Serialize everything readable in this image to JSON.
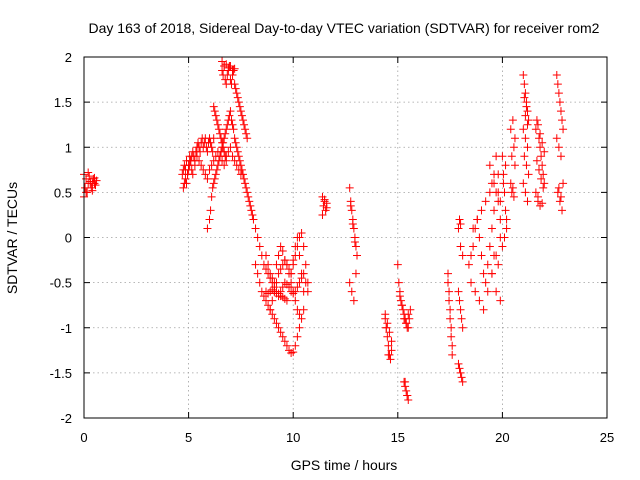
{
  "chart_data": {
    "type": "scatter",
    "title": "Day 163 of 2018, Sidereal Day-to-day VTEC variation (SDTVAR) for receiver rom2",
    "xlabel": "GPS time / hours",
    "ylabel": "SDTVAR / TECUs",
    "xlim": [
      0,
      25
    ],
    "ylim": [
      -2,
      2
    ],
    "xticks": [
      0,
      5,
      10,
      15,
      20,
      25
    ],
    "yticks": [
      -2,
      -1.5,
      -1,
      -0.5,
      0,
      0.5,
      1,
      1.5,
      2
    ],
    "xtick_labels": [
      "0",
      "5",
      "10",
      "15",
      "20",
      "25"
    ],
    "ytick_labels": [
      "-2",
      "-1.5",
      "-1",
      "-0.5",
      "0",
      "0.5",
      "1",
      "1.5",
      "2"
    ],
    "grid": true,
    "marker": "+",
    "color": "#ff0000",
    "series": [
      {
        "name": "SDTVAR",
        "x": [
          0.0,
          0.05,
          0.1,
          0.15,
          0.2,
          0.25,
          0.3,
          0.35,
          0.4,
          0.45,
          0.5,
          0.55,
          0.6,
          0.0,
          0.1,
          0.2,
          0.3,
          0.4,
          0.5,
          4.7,
          4.75,
          4.8,
          4.85,
          4.9,
          4.95,
          5.0,
          5.05,
          5.1,
          5.15,
          5.2,
          5.25,
          5.3,
          5.35,
          5.4,
          5.45,
          5.5,
          5.55,
          5.6,
          5.65,
          5.7,
          5.75,
          5.8,
          5.85,
          5.9,
          5.95,
          6.0,
          6.05,
          6.1,
          6.15,
          6.2,
          4.75,
          4.8,
          4.85,
          4.9,
          4.95,
          5.0,
          5.05,
          5.1,
          5.15,
          5.2,
          5.3,
          5.4,
          5.5,
          5.6,
          5.7,
          5.8,
          5.9,
          6.0,
          6.1,
          6.2,
          6.3,
          6.4,
          6.5,
          6.6,
          6.7,
          6.8,
          6.9,
          7.0,
          7.1,
          7.2,
          7.3,
          7.4,
          7.5,
          5.9,
          6.0,
          6.05,
          6.1,
          6.15,
          6.2,
          6.25,
          6.3,
          6.35,
          6.4,
          6.45,
          6.5,
          6.55,
          6.6,
          6.65,
          6.7,
          6.75,
          6.8,
          6.85,
          6.9,
          6.95,
          7.0,
          7.05,
          7.1,
          7.15,
          7.2,
          7.25,
          7.3,
          7.35,
          7.4,
          7.45,
          7.5,
          7.55,
          7.6,
          7.65,
          7.7,
          7.75,
          7.8,
          7.85,
          7.9,
          7.95,
          8.0,
          8.05,
          8.1,
          8.2,
          8.3,
          8.4,
          8.5,
          8.6,
          8.7,
          8.8,
          8.9,
          9.0,
          9.1,
          9.2,
          9.3,
          9.4,
          9.5,
          9.6,
          9.7,
          9.8,
          9.9,
          10.0,
          10.1,
          10.2,
          10.3,
          10.4,
          10.5,
          6.6,
          6.65,
          6.7,
          6.75,
          6.8,
          6.85,
          6.9,
          6.95,
          7.0,
          7.05,
          7.1,
          7.15,
          7.2,
          7.25,
          7.3,
          7.35,
          7.4,
          7.45,
          7.5,
          7.55,
          7.6,
          7.65,
          7.7,
          7.75,
          7.8,
          6.6,
          6.7,
          6.8,
          6.9,
          7.0,
          7.1,
          7.2,
          6.2,
          6.25,
          6.3,
          6.35,
          6.4,
          6.45,
          6.5,
          6.55,
          6.6,
          6.65,
          6.7,
          6.75,
          6.8,
          8.2,
          8.3,
          8.4,
          8.5,
          8.6,
          8.7,
          8.8,
          8.9,
          9.0,
          9.1,
          9.2,
          9.3,
          9.4,
          9.5,
          9.6,
          9.7,
          9.8,
          9.9,
          10.0,
          10.1,
          10.2,
          10.3,
          10.4,
          10.5,
          8.7,
          8.8,
          8.9,
          9.0,
          9.1,
          9.2,
          9.3,
          9.4,
          9.5,
          9.6,
          9.7,
          9.8,
          9.9,
          10.0,
          10.1,
          10.2,
          10.3,
          10.4,
          10.5,
          10.6,
          10.7,
          8.7,
          8.8,
          8.9,
          9.0,
          9.1,
          9.2,
          9.3,
          9.4,
          9.5,
          9.6,
          9.7,
          9.8,
          9.9,
          10.0,
          10.1,
          10.2,
          10.3,
          10.4,
          10.5,
          10.6,
          10.7,
          8.9,
          9.0,
          9.1,
          9.2,
          9.3,
          9.4,
          9.5,
          9.6,
          9.7,
          9.8,
          9.9,
          10.0,
          10.1,
          10.2,
          10.3,
          11.4,
          11.45,
          11.5,
          11.55,
          11.6,
          11.4,
          11.5,
          11.6,
          12.7,
          12.75,
          12.8,
          12.85,
          12.9,
          12.95,
          13.0,
          13.05,
          12.7,
          12.8,
          12.9,
          13.0,
          12.75,
          12.85,
          12.95,
          14.4,
          14.45,
          14.5,
          14.55,
          14.6,
          14.65,
          14.7,
          14.4,
          14.5,
          14.6,
          14.7,
          14.45,
          14.55,
          15.0,
          15.05,
          15.1,
          15.15,
          15.2,
          15.25,
          15.3,
          15.35,
          15.4,
          15.45,
          15.5,
          15.55,
          15.6,
          15.1,
          15.2,
          15.3,
          15.4,
          15.5,
          15.3,
          15.35,
          15.4,
          15.45,
          15.5,
          15.35,
          15.45,
          17.4,
          17.45,
          17.5,
          17.55,
          17.6,
          17.4,
          17.5,
          17.6,
          17.45,
          17.55,
          17.9,
          17.95,
          18.0,
          18.05,
          18.1,
          17.9,
          18.0,
          18.1,
          17.95,
          18.05,
          17.9,
          18.0,
          17.95,
          18.0,
          18.1,
          18.4,
          18.5,
          18.6,
          18.7,
          18.8,
          18.9,
          19.0,
          19.1,
          19.2,
          19.3,
          19.4,
          19.5,
          19.6,
          19.7,
          19.8,
          19.9,
          18.5,
          18.7,
          18.9,
          19.1,
          19.3,
          19.5,
          19.7,
          19.9,
          18.6,
          18.8,
          19.0,
          19.2,
          19.4,
          19.6,
          19.8,
          19.4,
          19.5,
          19.6,
          19.7,
          19.8,
          19.9,
          19.5,
          19.7,
          19.9,
          19.6,
          19.8,
          20.0,
          20.05,
          20.1,
          20.15,
          20.2,
          20.0,
          20.1,
          20.2,
          20.05,
          20.15,
          20.4,
          20.5,
          20.6,
          20.4,
          20.5,
          20.6,
          20.45,
          20.55,
          20.45,
          20.55,
          21.0,
          21.05,
          21.1,
          21.15,
          21.2,
          21.25,
          21.0,
          21.1,
          21.2,
          21.05,
          21.15,
          21.25,
          21.0,
          21.1,
          21.2,
          21.05,
          21.15,
          21.1,
          21.2,
          21.6,
          21.65,
          21.7,
          21.75,
          21.8,
          21.85,
          21.9,
          21.95,
          22.0,
          21.6,
          21.7,
          21.8,
          21.9,
          22.0,
          21.65,
          21.75,
          21.85,
          21.95,
          21.7,
          21.8,
          21.9,
          22.6,
          22.65,
          22.7,
          22.75,
          22.8,
          22.85,
          22.9,
          22.6,
          22.7,
          22.8,
          22.9,
          22.65,
          22.75,
          22.85,
          22.7,
          22.8
        ],
        "y": [
          0.7,
          0.55,
          0.65,
          0.5,
          0.6,
          0.68,
          0.62,
          0.55,
          0.6,
          0.65,
          0.6,
          0.58,
          0.63,
          0.45,
          0.5,
          0.72,
          0.6,
          0.52,
          0.66,
          0.7,
          0.75,
          0.8,
          0.65,
          0.6,
          0.7,
          0.75,
          0.8,
          0.85,
          0.9,
          0.95,
          0.9,
          0.85,
          0.95,
          1.0,
          1.05,
          1.0,
          0.95,
          1.05,
          1.1,
          1.0,
          1.05,
          1.1,
          1.0,
          0.95,
          1.05,
          1.1,
          1.05,
          1.0,
          0.95,
          1.1,
          0.55,
          0.6,
          0.75,
          0.85,
          0.7,
          0.8,
          0.9,
          0.85,
          0.75,
          0.7,
          0.8,
          0.9,
          0.85,
          0.8,
          0.75,
          0.7,
          0.65,
          0.75,
          0.8,
          0.85,
          0.9,
          0.95,
          0.9,
          0.85,
          0.8,
          0.9,
          0.95,
          1.0,
          0.9,
          0.85,
          0.8,
          0.75,
          0.7,
          0.1,
          0.2,
          0.3,
          0.45,
          0.55,
          0.6,
          0.65,
          0.7,
          0.75,
          0.8,
          0.85,
          0.9,
          0.95,
          1.0,
          1.05,
          1.1,
          1.15,
          1.2,
          1.25,
          1.3,
          1.35,
          1.4,
          1.3,
          1.25,
          1.2,
          1.1,
          1.05,
          1.0,
          0.95,
          0.9,
          0.85,
          0.8,
          0.75,
          0.7,
          0.65,
          0.6,
          0.55,
          0.5,
          0.45,
          0.4,
          0.35,
          0.3,
          0.25,
          0.2,
          0.1,
          0.0,
          -0.1,
          -0.2,
          -0.3,
          -0.35,
          -0.4,
          -0.45,
          -0.5,
          -0.55,
          -0.6,
          -0.62,
          -0.65,
          -0.66,
          -0.68,
          -0.7,
          -0.55,
          -0.4,
          -0.25,
          -0.1,
          0.0,
          -0.2,
          -0.4,
          -0.6,
          1.85,
          1.8,
          1.9,
          1.75,
          1.7,
          1.8,
          1.85,
          1.9,
          1.75,
          1.7,
          1.8,
          1.85,
          1.7,
          1.65,
          1.6,
          1.55,
          1.5,
          1.45,
          1.4,
          1.35,
          1.3,
          1.25,
          1.2,
          1.15,
          1.1,
          1.95,
          1.9,
          1.92,
          1.88,
          1.9,
          1.85,
          1.87,
          1.45,
          1.4,
          1.35,
          1.3,
          1.25,
          1.2,
          1.15,
          1.1,
          1.05,
          1.0,
          0.95,
          0.9,
          0.85,
          -0.3,
          -0.4,
          -0.5,
          -0.6,
          -0.65,
          -0.7,
          -0.75,
          -0.8,
          -0.85,
          -0.9,
          -0.95,
          -1.0,
          -1.05,
          -1.1,
          -1.15,
          -1.2,
          -1.25,
          -1.28,
          -1.27,
          -1.2,
          -1.1,
          -1.0,
          -0.9,
          -0.8,
          -0.6,
          -0.62,
          -0.6,
          -0.58,
          -0.6,
          -0.62,
          -0.65,
          -0.6,
          -0.55,
          -0.5,
          -0.52,
          -0.55,
          -0.6,
          -0.62,
          -0.6,
          -0.55,
          -0.5,
          -0.45,
          -0.4,
          -0.5,
          -0.6,
          -0.2,
          -0.3,
          -0.4,
          -0.45,
          -0.5,
          -0.3,
          -0.2,
          -0.1,
          -0.15,
          -0.25,
          -0.3,
          -0.35,
          -0.4,
          -0.3,
          -0.2,
          -0.1,
          0.0,
          0.05,
          -0.1,
          -0.3,
          -0.5,
          -0.8,
          -0.7,
          -0.6,
          -0.5,
          -0.4,
          -0.35,
          -0.3,
          -0.25,
          -0.3,
          -0.4,
          -0.5,
          -0.6,
          -0.7,
          -0.8,
          -0.85,
          0.45,
          0.35,
          0.4,
          0.3,
          0.38,
          0.25,
          0.42,
          0.33,
          0.55,
          0.4,
          0.3,
          0.2,
          0.1,
          0.0,
          -0.1,
          -0.2,
          -0.5,
          -0.6,
          -0.7,
          -0.4,
          0.35,
          0.15,
          -0.05,
          -0.9,
          -1.0,
          -1.1,
          -1.2,
          -1.3,
          -1.35,
          -1.25,
          -0.85,
          -0.95,
          -1.05,
          -1.15,
          -1.0,
          -1.3,
          -0.3,
          -0.5,
          -0.6,
          -0.7,
          -0.75,
          -0.8,
          -0.85,
          -0.9,
          -0.95,
          -1.0,
          -0.85,
          -0.9,
          -0.8,
          -0.65,
          -0.75,
          -0.9,
          -0.95,
          -1.0,
          -1.6,
          -1.65,
          -1.7,
          -1.75,
          -1.8,
          -1.6,
          -1.75,
          -0.4,
          -0.6,
          -0.8,
          -1.0,
          -1.2,
          -0.5,
          -0.9,
          -1.3,
          -0.7,
          -1.1,
          -0.6,
          -0.7,
          -0.8,
          -0.9,
          -1.0,
          -1.4,
          -1.5,
          -1.6,
          -1.45,
          -1.55,
          0.1,
          0.15,
          0.2,
          -0.1,
          -0.2,
          -0.3,
          -0.2,
          -0.1,
          0.1,
          0.2,
          0.0,
          -0.2,
          -0.4,
          -0.5,
          -0.3,
          -0.1,
          0.1,
          0.3,
          0.5,
          0.4,
          0.2,
          -0.5,
          -0.6,
          -0.7,
          -0.8,
          -0.6,
          -0.4,
          -0.2,
          0.0,
          0.1,
          0.2,
          0.3,
          0.4,
          0.5,
          0.6,
          0.7,
          0.8,
          0.6,
          0.7,
          0.9,
          0.5,
          0.4,
          -0.4,
          -0.6,
          -0.7,
          -0.2,
          -0.3,
          0.9,
          0.7,
          0.5,
          0.3,
          0.1,
          -0.1,
          0.0,
          0.2,
          0.6,
          0.8,
          1.2,
          1.3,
          1.1,
          0.6,
          0.55,
          0.8,
          0.9,
          1.0,
          0.5,
          0.45,
          1.8,
          1.7,
          1.6,
          1.5,
          1.4,
          1.3,
          1.2,
          1.1,
          1.0,
          0.9,
          0.8,
          0.7,
          0.6,
          0.5,
          0.4,
          1.55,
          1.45,
          1.35,
          1.25,
          1.2,
          1.3,
          1.25,
          1.1,
          1.0,
          0.9,
          0.8,
          0.7,
          0.6,
          0.5,
          0.4,
          0.35,
          1.05,
          0.95,
          0.85,
          0.75,
          0.65,
          0.55,
          0.45,
          1.15,
          0.38,
          1.8,
          1.7,
          1.6,
          1.5,
          1.4,
          1.3,
          1.2,
          1.1,
          1.0,
          0.9,
          0.6,
          0.5,
          0.4,
          0.3,
          0.55,
          0.45
        ]
      }
    ]
  }
}
